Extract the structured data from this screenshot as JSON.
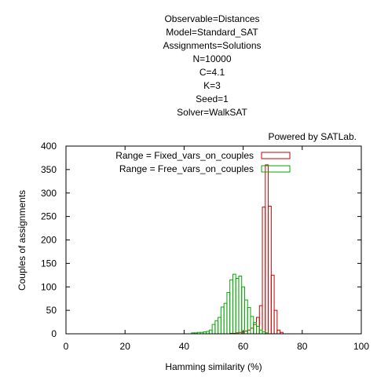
{
  "chart_data": {
    "type": "bar",
    "title_lines": [
      "Observable=Distances",
      "Model=Standard_SAT",
      "Assignments=Solutions",
      "N=10000",
      "C=4.1",
      "K=3",
      "Seed=1",
      "Solver=WalkSAT"
    ],
    "credit": "Powered by SATLab.",
    "xlabel": "Hamming similarity (%)",
    "ylabel": "Couples of assignments",
    "xlim": [
      0,
      100
    ],
    "ylim": [
      0,
      400
    ],
    "x_ticks": [
      0,
      20,
      40,
      60,
      80,
      100
    ],
    "y_ticks": [
      0,
      50,
      100,
      150,
      200,
      250,
      300,
      350,
      400
    ],
    "bin_width": 1,
    "legend_position": "top-center",
    "series": [
      {
        "name": "Range = Fixed_vars_on_couples",
        "color": "#cc0000",
        "x": [
          56,
          57,
          58,
          59,
          60,
          61,
          62,
          63,
          64,
          65,
          66,
          67,
          68,
          69,
          70,
          71,
          72,
          73
        ],
        "values": [
          1,
          1,
          2,
          3,
          4,
          6,
          8,
          12,
          20,
          35,
          60,
          270,
          360,
          272,
          125,
          50,
          8,
          3
        ]
      },
      {
        "name": "Range = Free_vars_on_couples",
        "color": "#00aa00",
        "x": [
          43,
          44,
          45,
          46,
          47,
          48,
          49,
          50,
          51,
          52,
          53,
          54,
          55,
          56,
          57,
          58,
          59,
          60,
          61,
          62,
          63,
          64,
          65,
          66,
          67,
          68
        ],
        "values": [
          2,
          2,
          3,
          3,
          4,
          5,
          8,
          20,
          28,
          35,
          57,
          65,
          88,
          115,
          127,
          118,
          123,
          100,
          72,
          56,
          37,
          24,
          16,
          8,
          4,
          2
        ]
      }
    ]
  }
}
